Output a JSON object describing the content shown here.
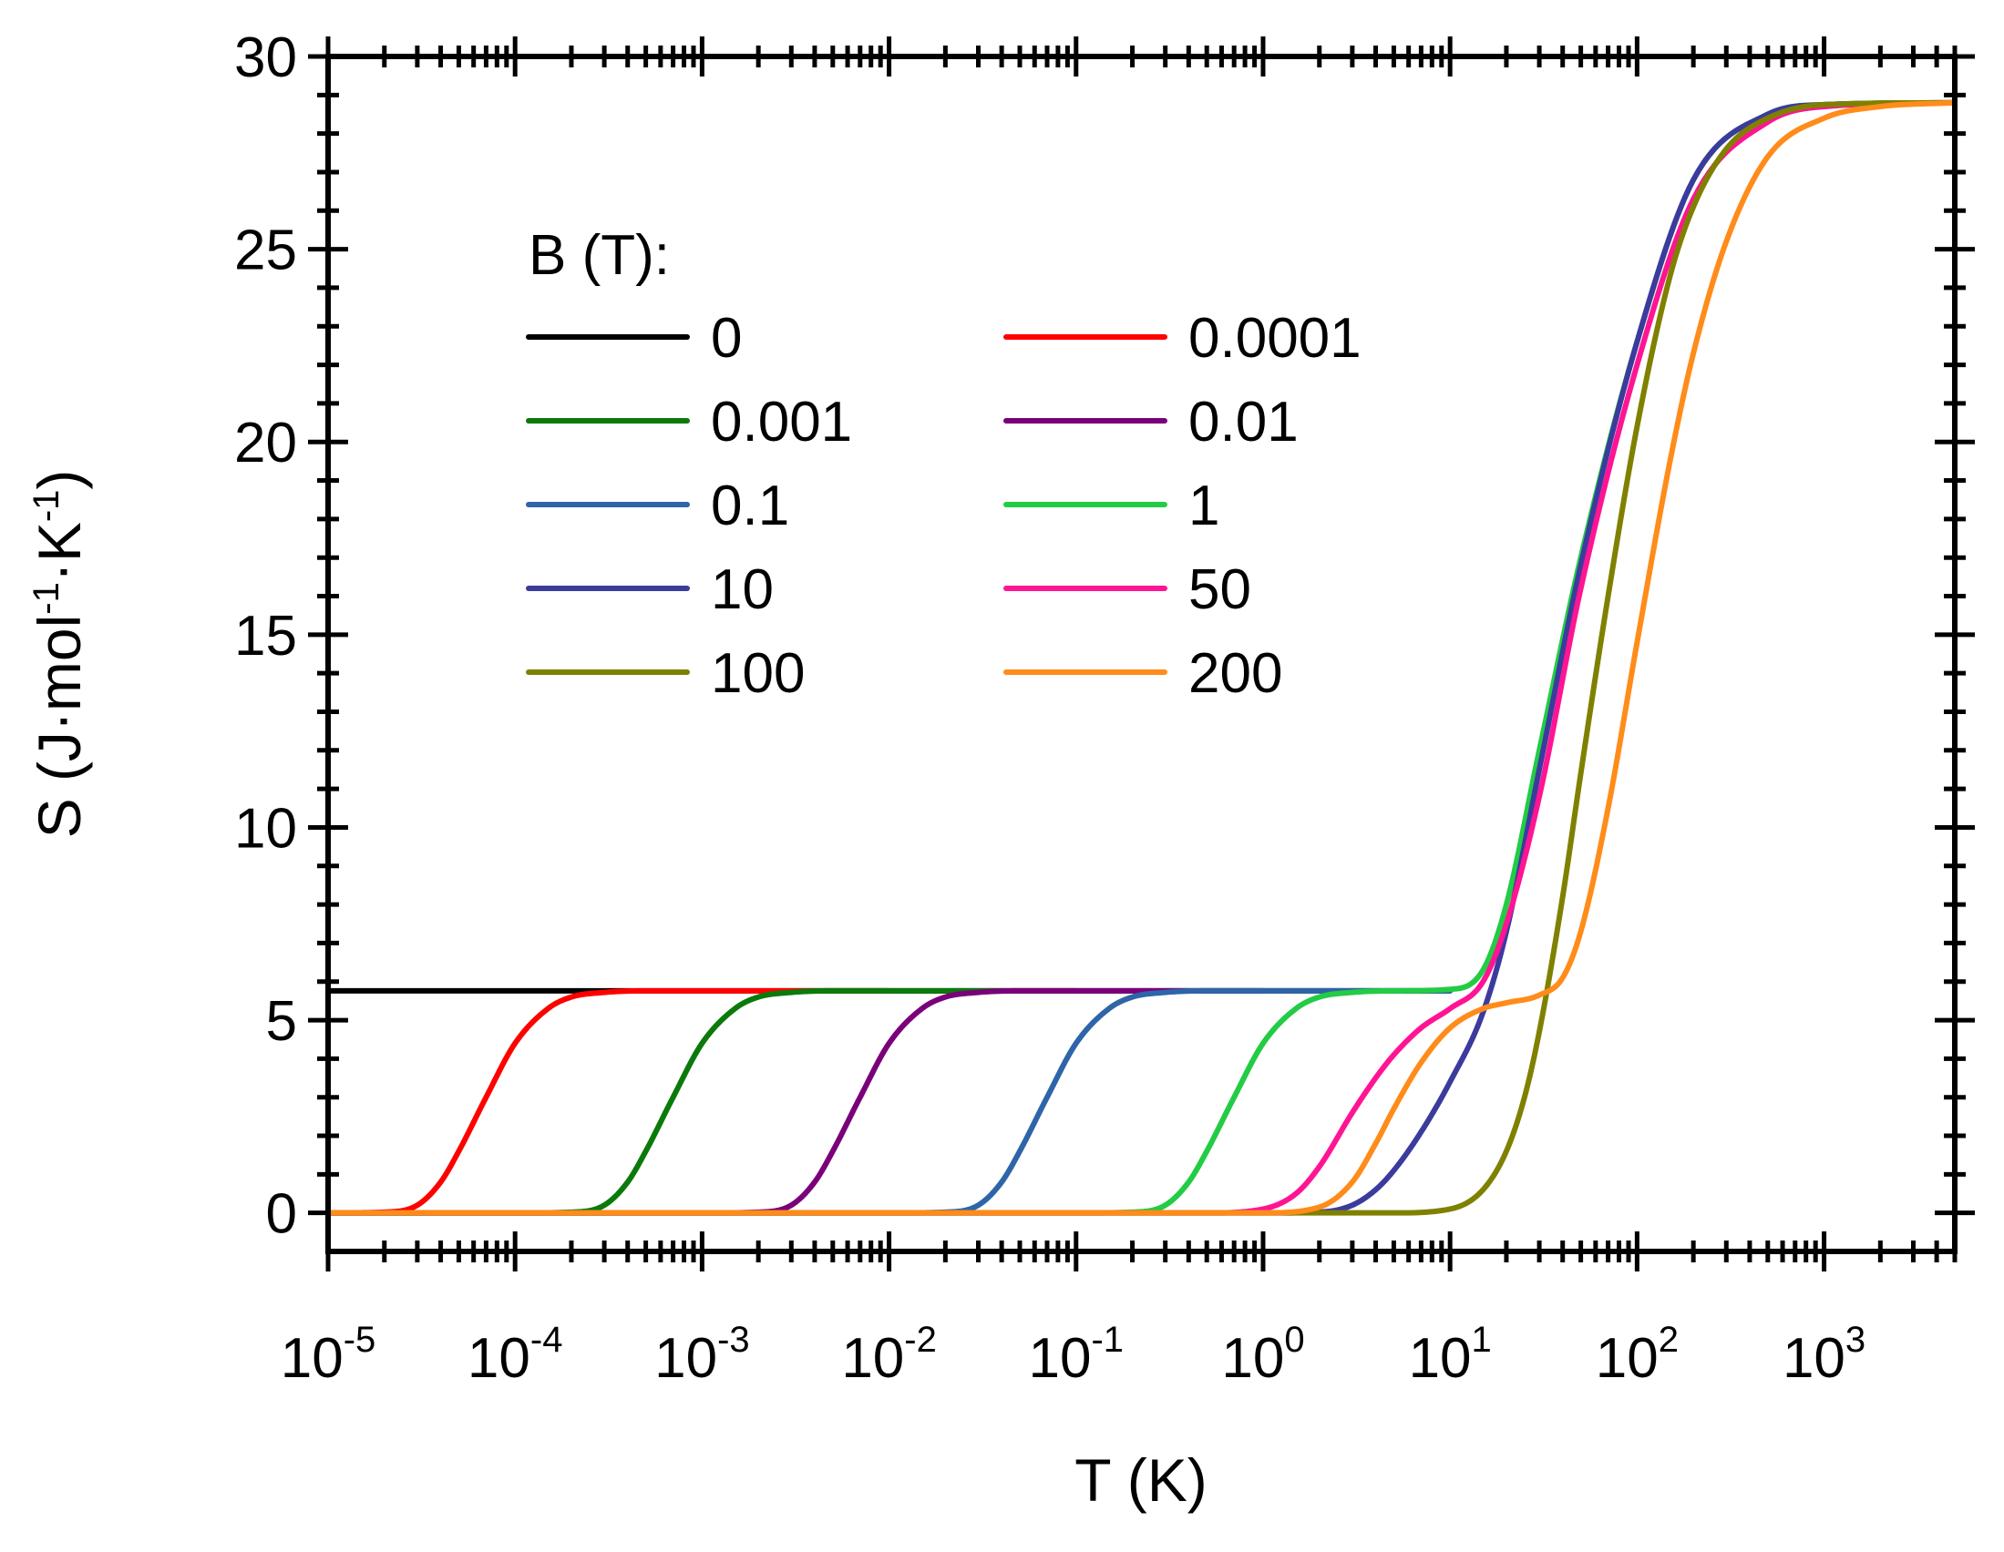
{
  "chart_data": {
    "type": "line",
    "title": "",
    "xlabel": "T (K)",
    "ylabel_parts": [
      "S (J·mol",
      "-1",
      "·K",
      "-1",
      ")"
    ],
    "xscale": "log",
    "xlim": [
      1e-05,
      5000
    ],
    "ylim": [
      -1,
      30
    ],
    "x_ticks": [
      {
        "base": "10",
        "exp": "-5"
      },
      {
        "base": "10",
        "exp": "-4"
      },
      {
        "base": "10",
        "exp": "-3"
      },
      {
        "base": "10",
        "exp": "-2"
      },
      {
        "base": "10",
        "exp": "-1"
      },
      {
        "base": "10",
        "exp": "0"
      },
      {
        "base": "10",
        "exp": "1"
      },
      {
        "base": "10",
        "exp": "2"
      },
      {
        "base": "10",
        "exp": "3"
      }
    ],
    "y_ticks": [
      "0",
      "5",
      "10",
      "15",
      "20",
      "25",
      "30"
    ],
    "legend_title": "B (T):",
    "legend_position": "upper-left",
    "series": [
      {
        "name": "0",
        "color": "#000000",
        "x": [
          1e-05,
          0.0001,
          0.001,
          0.01,
          0.1,
          1,
          5,
          10
        ],
        "y": [
          5.76,
          5.76,
          5.76,
          5.76,
          5.76,
          5.76,
          5.76,
          5.76
        ]
      },
      {
        "name": "0.0001",
        "color": "#ff0000",
        "x": [
          1e-05,
          2e-05,
          3e-05,
          4e-05,
          5e-05,
          7e-05,
          0.0001,
          0.00015,
          0.0002,
          0.0003,
          0.0005,
          0.001,
          0.01
        ],
        "y": [
          0,
          0.02,
          0.2,
          0.8,
          1.6,
          3.0,
          4.4,
          5.3,
          5.6,
          5.72,
          5.76,
          5.76,
          5.76
        ]
      },
      {
        "name": "0.001",
        "color": "#0a7a0a",
        "x": [
          1e-05,
          0.0001,
          0.0002,
          0.0003,
          0.0004,
          0.0005,
          0.0007,
          0.001,
          0.0015,
          0.002,
          0.003,
          0.005,
          0.01,
          0.1
        ],
        "y": [
          0,
          0,
          0.02,
          0.2,
          0.8,
          1.6,
          3.0,
          4.4,
          5.3,
          5.6,
          5.72,
          5.76,
          5.76,
          5.76
        ]
      },
      {
        "name": "0.01",
        "color": "#7a007a",
        "x": [
          1e-05,
          0.001,
          0.002,
          0.003,
          0.004,
          0.005,
          0.007,
          0.01,
          0.015,
          0.02,
          0.03,
          0.05,
          0.1,
          1
        ],
        "y": [
          0,
          0,
          0.02,
          0.2,
          0.8,
          1.6,
          3.0,
          4.4,
          5.3,
          5.6,
          5.72,
          5.76,
          5.76,
          5.76
        ]
      },
      {
        "name": "0.1",
        "color": "#2e65a8",
        "x": [
          1e-05,
          0.01,
          0.02,
          0.03,
          0.04,
          0.05,
          0.07,
          0.1,
          0.15,
          0.2,
          0.3,
          0.5,
          1,
          10
        ],
        "y": [
          0,
          0,
          0.02,
          0.2,
          0.8,
          1.6,
          3.0,
          4.4,
          5.3,
          5.6,
          5.72,
          5.76,
          5.76,
          5.76
        ]
      },
      {
        "name": "1",
        "color": "#22cc44",
        "x": [
          1e-05,
          0.1,
          0.2,
          0.3,
          0.4,
          0.5,
          0.7,
          1,
          1.5,
          2,
          3,
          5,
          10,
          15,
          20,
          30,
          50,
          100,
          200,
          500,
          1000,
          5000
        ],
        "y": [
          0,
          0,
          0.02,
          0.2,
          0.8,
          1.6,
          3.0,
          4.4,
          5.3,
          5.6,
          5.72,
          5.76,
          5.8,
          6.3,
          8.0,
          12.0,
          17.0,
          22.6,
          26.8,
          28.5,
          28.75,
          28.8
        ]
      },
      {
        "name": "10",
        "color": "#3b3b9e",
        "x": [
          1e-05,
          1,
          2,
          3,
          4,
          5,
          7,
          10,
          15,
          20,
          30,
          50,
          100,
          200,
          500,
          1000,
          5000
        ],
        "y": [
          0,
          0,
          0.02,
          0.2,
          0.6,
          1.1,
          2.1,
          3.4,
          5.2,
          7.3,
          11.5,
          16.8,
          22.6,
          26.8,
          28.5,
          28.75,
          28.8
        ]
      },
      {
        "name": "50",
        "color": "#ff1493",
        "x": [
          1e-05,
          0.5,
          1,
          1.5,
          2,
          3,
          4,
          5,
          7,
          10,
          15,
          20,
          30,
          50,
          100,
          200,
          500,
          1000,
          5000
        ],
        "y": [
          0,
          0,
          0.1,
          0.5,
          1.2,
          2.6,
          3.5,
          4.1,
          4.8,
          5.3,
          6.0,
          7.5,
          10.8,
          16.2,
          22.0,
          26.3,
          28.3,
          28.7,
          28.8
        ]
      },
      {
        "name": "100",
        "color": "#808000",
        "x": [
          1e-05,
          5,
          10,
          15,
          20,
          25,
          30,
          40,
          50,
          70,
          100,
          150,
          200,
          300,
          500,
          1000,
          5000
        ],
        "y": [
          0,
          0,
          0.1,
          0.6,
          1.6,
          3.0,
          4.7,
          8.2,
          11.4,
          16.0,
          20.4,
          24.3,
          26.1,
          27.6,
          28.4,
          28.75,
          28.8
        ]
      },
      {
        "name": "200",
        "color": "#ff8c1a",
        "x": [
          1e-05,
          1,
          2,
          3,
          4,
          5,
          7,
          10,
          15,
          20,
          30,
          40,
          50,
          70,
          100,
          150,
          200,
          300,
          500,
          1000,
          2000,
          5000
        ],
        "y": [
          0,
          0,
          0.15,
          0.8,
          1.8,
          2.7,
          3.9,
          4.8,
          5.3,
          5.45,
          5.65,
          6.1,
          7.3,
          10.5,
          14.8,
          19.5,
          22.3,
          25.2,
          27.4,
          28.4,
          28.7,
          28.8
        ]
      }
    ]
  }
}
